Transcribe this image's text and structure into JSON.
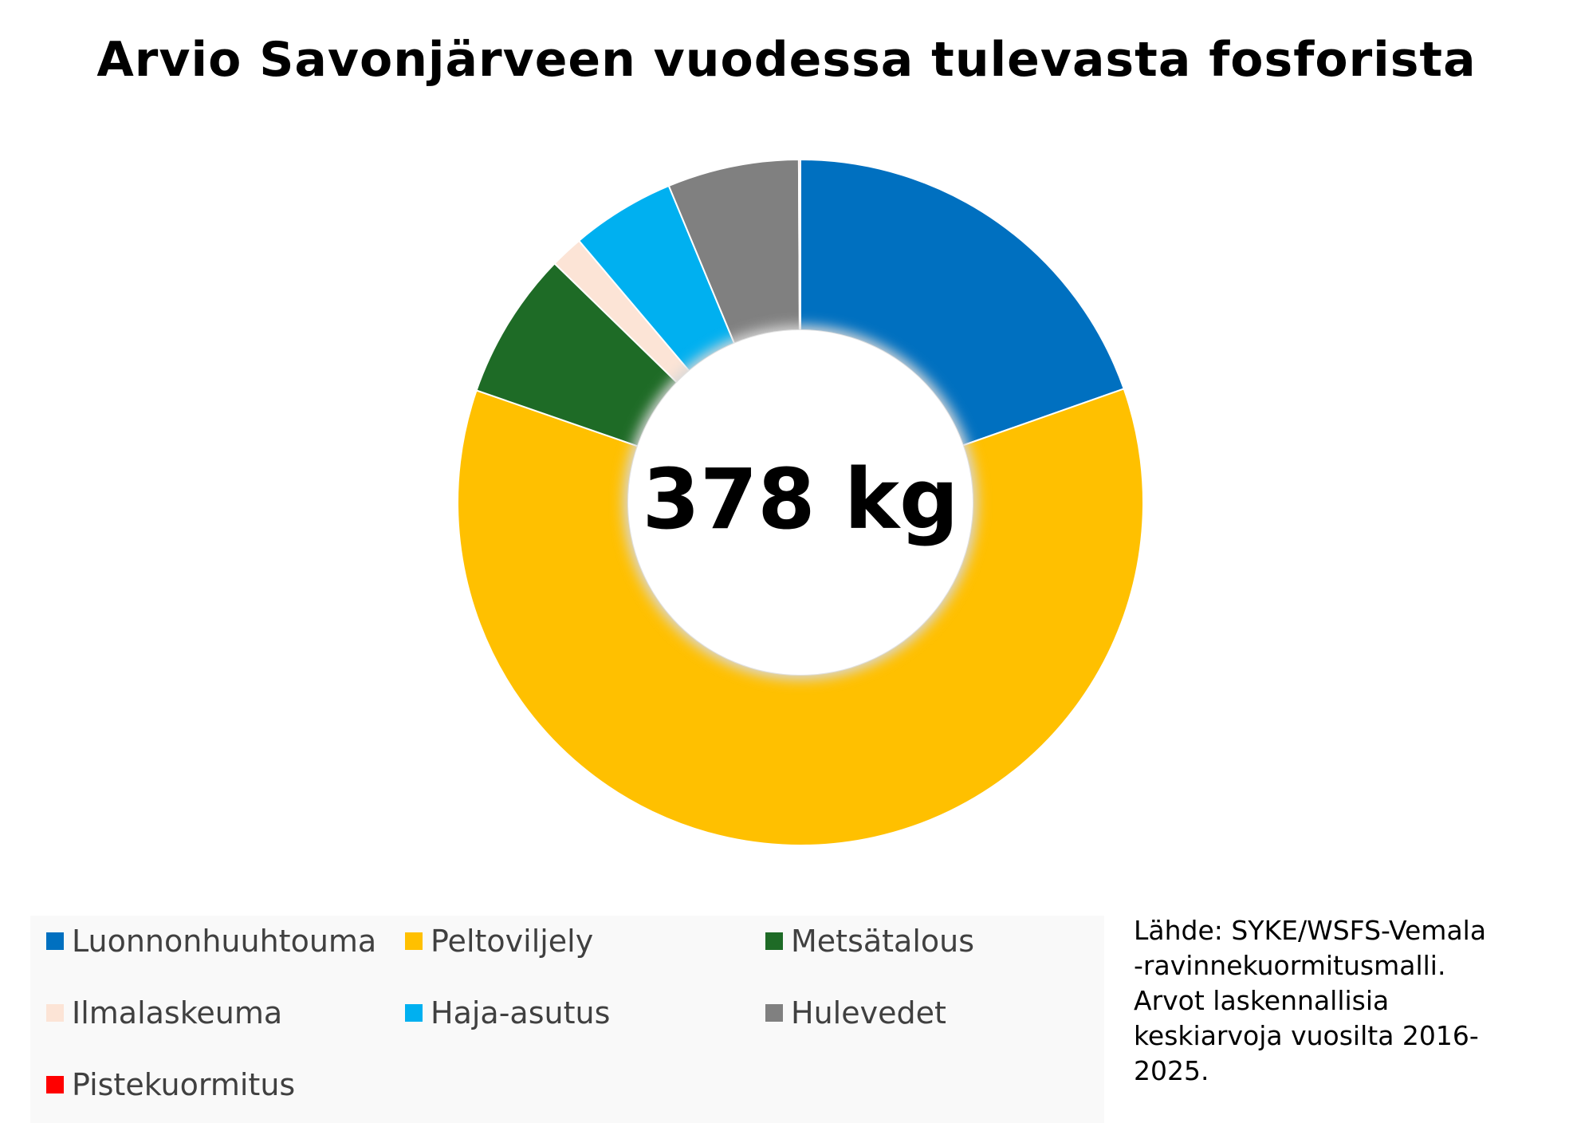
{
  "chart_data": {
    "type": "pie",
    "title": "Arvio Savonjärveen vuodessa tulevasta fosforista",
    "center_label": "378 kg",
    "total": 378,
    "unit": "kg",
    "hole": "donut",
    "legend_position": "bottom-left",
    "categories": [
      "Luonnonhuuhtouma",
      "Peltoviljely",
      "Metsätalous",
      "Ilmalaskeuma",
      "Haja-asutus",
      "Hulevedet",
      "Pistekuormitus"
    ],
    "values": [
      76,
      235,
      27,
      6,
      19,
      24,
      0.3
    ],
    "colors": [
      "#0070C0",
      "#FFC000",
      "#1E6B26",
      "#FCE4D6",
      "#00B0F0",
      "#808080",
      "#FF0000"
    ]
  },
  "legend": {
    "items": [
      {
        "label": "Luonnonhuuhtouma",
        "color": "#0070C0"
      },
      {
        "label": "Peltoviljely",
        "color": "#FFC000"
      },
      {
        "label": "Metsätalous",
        "color": "#1E6B26"
      },
      {
        "label": "Ilmalaskeuma",
        "color": "#FCE4D6"
      },
      {
        "label": "Haja-asutus",
        "color": "#00B0F0"
      },
      {
        "label": "Hulevedet",
        "color": "#808080"
      },
      {
        "label": "Pistekuormitus",
        "color": "#FF0000"
      }
    ]
  },
  "source_note": {
    "lines": [
      "Lähde: SYKE/WSFS-Vemala",
      "-ravinnekuormitusmalli.",
      "Arvot laskennallisia",
      "keskiarvoja vuosilta 2016-",
      "2025."
    ]
  }
}
